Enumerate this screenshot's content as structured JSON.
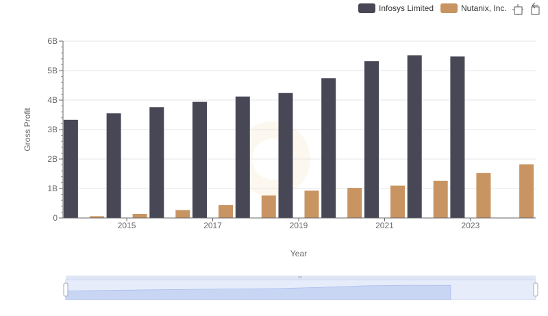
{
  "chart_data": {
    "type": "bar",
    "title": "",
    "xlabel": "Year",
    "ylabel": "Gross Profit",
    "ylim": [
      0,
      6000000000
    ],
    "y_ticks": [
      {
        "value": 0,
        "label": "0"
      },
      {
        "value": 1000000000,
        "label": "1B"
      },
      {
        "value": 2000000000,
        "label": "2B"
      },
      {
        "value": 3000000000,
        "label": "3B"
      },
      {
        "value": 4000000000,
        "label": "4B"
      },
      {
        "value": 5000000000,
        "label": "5B"
      },
      {
        "value": 6000000000,
        "label": "6B"
      }
    ],
    "x_tick_labels": [
      "2015",
      "2017",
      "2019",
      "2021",
      "2023"
    ],
    "categories": [
      "2014",
      "2015",
      "2016",
      "2017",
      "2018",
      "2019",
      "2020",
      "2021",
      "2022",
      "2023",
      "2024"
    ],
    "series": [
      {
        "name": "Infosys Limited",
        "color": "#474755",
        "values": [
          3330000000,
          3550000000,
          3760000000,
          3940000000,
          4120000000,
          4240000000,
          4740000000,
          5320000000,
          5520000000,
          5480000000,
          null
        ]
      },
      {
        "name": "Nutanix, Inc.",
        "color": "#c89462",
        "values": [
          60000000,
          140000000,
          270000000,
          440000000,
          760000000,
          930000000,
          1020000000,
          1100000000,
          1260000000,
          1530000000,
          1820000000
        ]
      }
    ],
    "legend_position": "top-right",
    "grid": true
  },
  "toolbar": {
    "zoom_icon": "zoom-icon",
    "reset_icon": "reset-zoom-icon"
  }
}
